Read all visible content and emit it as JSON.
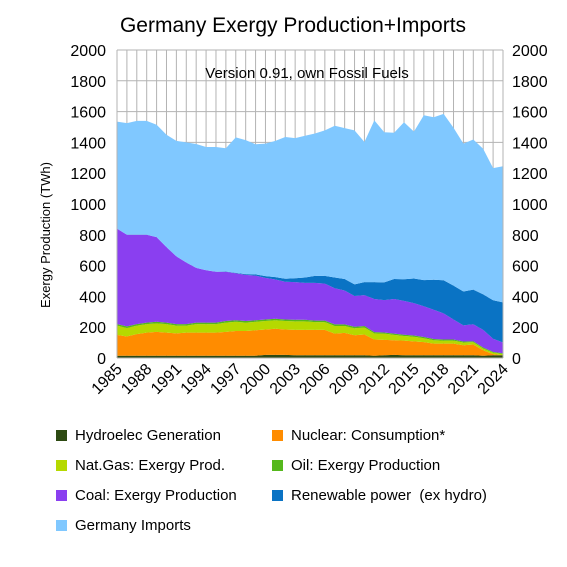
{
  "chart_data": {
    "type": "area",
    "stacked": true,
    "title": "Germany Exergy Production+Imports",
    "subtitle": "Version 0.91, own Fossil Fuels",
    "ylabel": "Exergy Production (TWh)",
    "xlabel": "",
    "ylim": [
      0,
      2000
    ],
    "y_ticks": [
      "0",
      "200",
      "400",
      "600",
      "800",
      "1000",
      "1200",
      "1400",
      "1600",
      "1800",
      "2000"
    ],
    "x_ticks": [
      "1985",
      "1988",
      "1991",
      "1994",
      "1997",
      "2000",
      "2003",
      "2006",
      "2009",
      "2012",
      "2015",
      "2018",
      "2021",
      "2024"
    ],
    "grid": true,
    "legend_position": "bottom",
    "x": [
      1985,
      1986,
      1987,
      1988,
      1989,
      1990,
      1991,
      1992,
      1993,
      1994,
      1995,
      1996,
      1997,
      1998,
      1999,
      2000,
      2001,
      2002,
      2003,
      2004,
      2005,
      2006,
      2007,
      2008,
      2009,
      2010,
      2011,
      2012,
      2013,
      2014,
      2015,
      2016,
      2017,
      2018,
      2019,
      2020,
      2021,
      2022,
      2023,
      2024
    ],
    "series": [
      {
        "name": "Hydroelec Generation",
        "color": "#2d4a12",
        "values": [
          15,
          15,
          15,
          15,
          15,
          15,
          15,
          15,
          15,
          15,
          15,
          15,
          15,
          15,
          15,
          20,
          20,
          20,
          18,
          18,
          18,
          18,
          18,
          18,
          18,
          18,
          15,
          18,
          20,
          18,
          18,
          18,
          18,
          18,
          18,
          18,
          18,
          15,
          18,
          18
        ]
      },
      {
        "name": "Nuclear: Consumption*",
        "color": "#ff8c00",
        "values": [
          135,
          125,
          140,
          150,
          155,
          150,
          145,
          150,
          150,
          150,
          150,
          155,
          160,
          160,
          165,
          165,
          170,
          165,
          165,
          165,
          165,
          165,
          140,
          145,
          130,
          135,
          105,
          100,
          95,
          95,
          90,
          85,
          75,
          75,
          75,
          65,
          70,
          35,
          7,
          0
        ]
      },
      {
        "name": "Nat.Gas: Exergy Prod.",
        "color": "#b5d900",
        "values": [
          60,
          55,
          55,
          55,
          55,
          55,
          50,
          45,
          55,
          55,
          55,
          60,
          60,
          55,
          55,
          55,
          55,
          55,
          55,
          55,
          50,
          50,
          50,
          45,
          45,
          45,
          40,
          40,
          35,
          30,
          30,
          25,
          22,
          20,
          20,
          18,
          15,
          12,
          10,
          8
        ]
      },
      {
        "name": "Oil: Exergy Production",
        "color": "#55b81c",
        "values": [
          10,
          10,
          10,
          10,
          10,
          10,
          10,
          10,
          10,
          10,
          10,
          10,
          10,
          10,
          10,
          10,
          10,
          10,
          10,
          10,
          10,
          10,
          10,
          10,
          10,
          10,
          8,
          8,
          8,
          8,
          8,
          8,
          8,
          7,
          7,
          6,
          6,
          6,
          5,
          5
        ]
      },
      {
        "name": "Coal: Exergy Production",
        "color": "#8a3ff0",
        "values": [
          620,
          595,
          580,
          570,
          550,
          490,
          440,
          400,
          355,
          340,
          330,
          320,
          305,
          300,
          290,
          270,
          255,
          245,
          245,
          240,
          245,
          240,
          235,
          220,
          200,
          200,
          215,
          210,
          225,
          220,
          210,
          200,
          190,
          170,
          130,
          105,
          110,
          115,
          85,
          70
        ]
      },
      {
        "name": "Renewable power  (ex hydro)",
        "color": "#0a73c4",
        "values": [
          0,
          0,
          0,
          0,
          0,
          0,
          0,
          0,
          0,
          0,
          0,
          2,
          3,
          5,
          8,
          12,
          15,
          20,
          25,
          35,
          45,
          50,
          70,
          75,
          75,
          85,
          110,
          115,
          130,
          140,
          160,
          170,
          195,
          215,
          220,
          220,
          225,
          230,
          250,
          260
        ]
      },
      {
        "name": "Germany Imports",
        "color": "#80c8ff",
        "values": [
          695,
          725,
          740,
          740,
          730,
          730,
          750,
          780,
          805,
          800,
          810,
          800,
          880,
          870,
          845,
          860,
          885,
          920,
          910,
          920,
          925,
          945,
          985,
          980,
          1000,
          910,
          1050,
          975,
          950,
          1020,
          954,
          1070,
          1055,
          1080,
          1025,
          960,
          975,
          945,
          858,
          884
        ]
      }
    ]
  }
}
